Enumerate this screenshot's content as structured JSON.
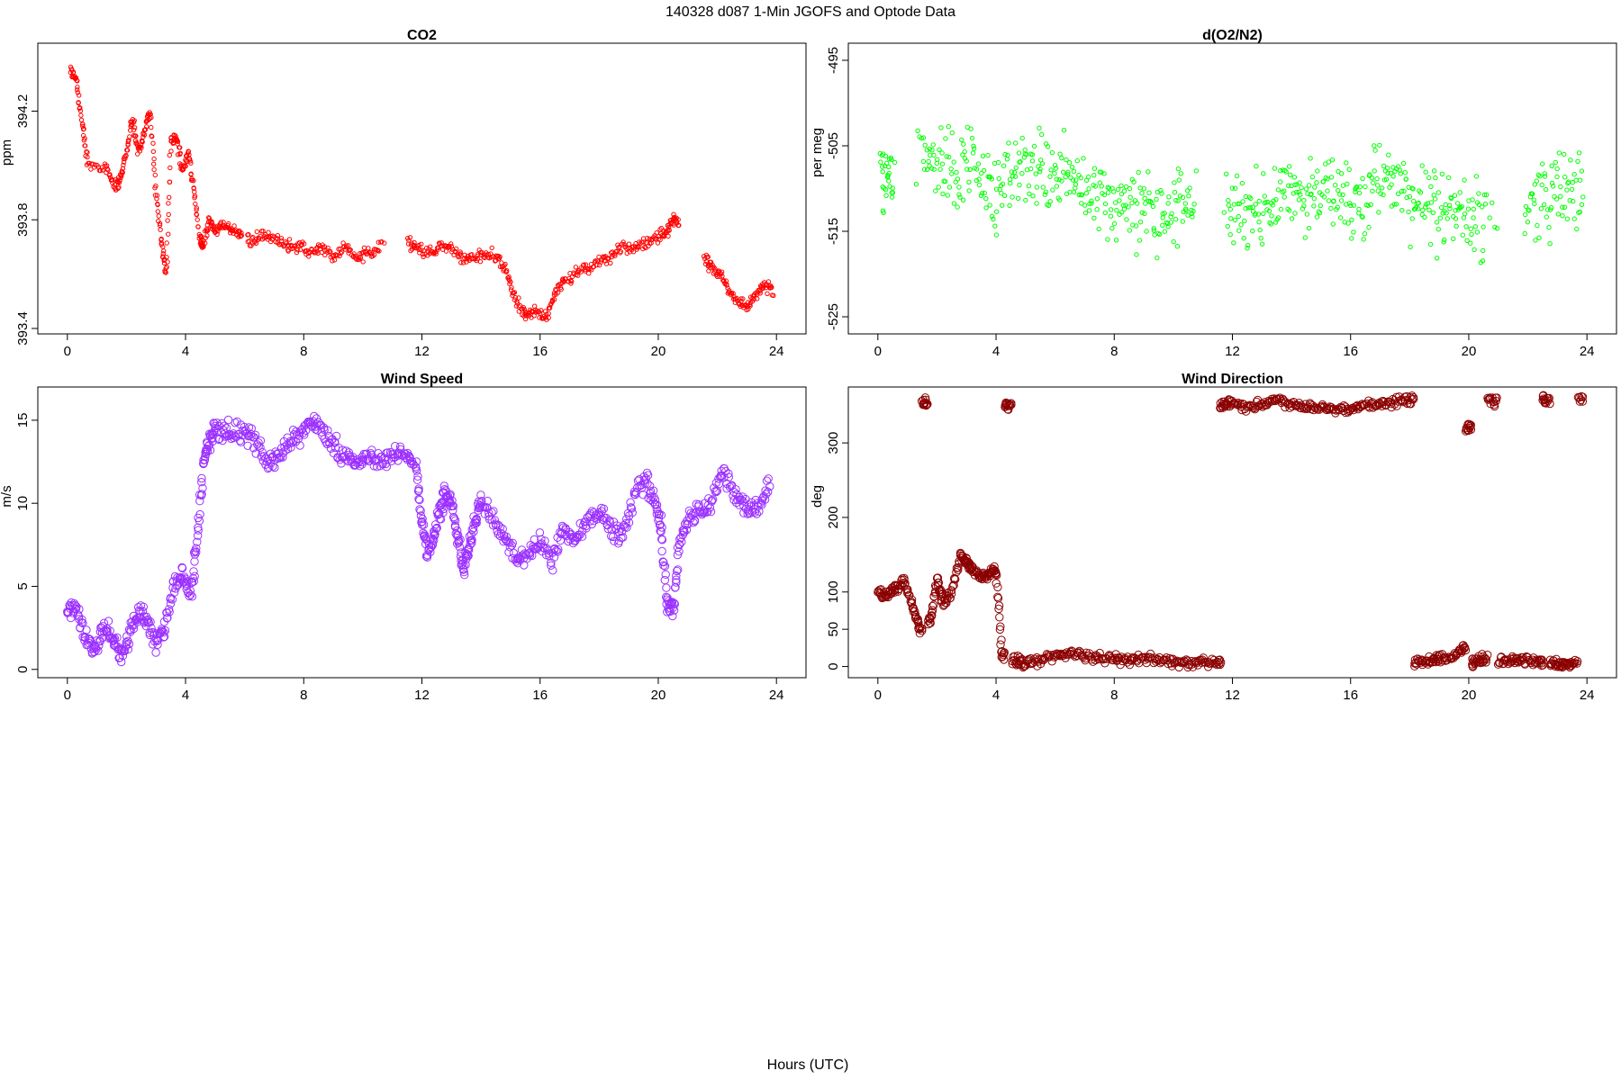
{
  "figure": {
    "title": "140328   d087   1-Min  JGOFS and Optode Data",
    "xlabel": "Hours (UTC)"
  },
  "chart_data": [
    {
      "type": "scatter",
      "title": "CO2",
      "ylabel": "ppm",
      "color": "#ff0000",
      "marker": "small-open-circle",
      "xlim": [
        -1,
        25
      ],
      "ylim": [
        393.38,
        394.45
      ],
      "xticks": [
        0,
        4,
        8,
        12,
        16,
        20,
        24
      ],
      "xtick_labels": [
        "0",
        "4",
        "8",
        "12",
        "16",
        "20",
        "24"
      ],
      "yticks": [
        393.4,
        393.8,
        394.2
      ],
      "ytick_labels": [
        "393.4",
        "393.8",
        "394.2"
      ],
      "gaps": [
        [
          5.9,
          6.1
        ],
        [
          10.8,
          11.5
        ],
        [
          20.7,
          21.5
        ]
      ],
      "x": [
        0.1,
        0.3,
        0.5,
        0.7,
        1.3,
        1.6,
        1.8,
        2.0,
        2.2,
        2.4,
        2.6,
        2.8,
        3.0,
        3.2,
        3.35,
        3.5,
        3.7,
        3.9,
        4.1,
        4.3,
        4.5,
        4.6,
        4.8,
        5.0,
        5.3,
        5.6,
        5.9,
        6.2,
        6.6,
        7.0,
        7.4,
        7.8,
        8.2,
        8.6,
        9.0,
        9.4,
        9.8,
        10.2,
        10.6,
        11.5,
        11.8,
        12.2,
        12.6,
        13.0,
        13.4,
        13.8,
        14.2,
        14.6,
        14.9,
        15.2,
        15.5,
        15.8,
        16.2,
        16.5,
        16.8,
        17.2,
        17.6,
        18.0,
        18.4,
        18.8,
        19.2,
        19.6,
        20.0,
        20.3,
        20.5,
        20.7,
        21.6,
        21.8,
        22.1,
        22.4,
        22.7,
        23.0,
        23.3,
        23.6,
        23.9
      ],
      "y": [
        394.35,
        394.32,
        394.15,
        394.0,
        394.0,
        393.92,
        393.95,
        394.05,
        394.18,
        394.05,
        394.12,
        394.2,
        393.9,
        393.7,
        393.6,
        394.1,
        394.1,
        393.98,
        394.05,
        393.9,
        393.72,
        393.7,
        393.8,
        393.76,
        393.78,
        393.76,
        393.74,
        393.72,
        393.74,
        393.73,
        393.71,
        393.7,
        393.68,
        393.7,
        393.66,
        393.7,
        393.66,
        393.68,
        393.7,
        393.72,
        393.7,
        393.68,
        393.7,
        393.7,
        393.65,
        393.66,
        393.68,
        393.66,
        393.6,
        393.5,
        393.45,
        393.46,
        393.44,
        393.52,
        393.58,
        393.6,
        393.62,
        393.65,
        393.66,
        393.7,
        393.7,
        393.72,
        393.74,
        393.76,
        393.8,
        393.8,
        393.65,
        393.62,
        393.6,
        393.54,
        393.5,
        393.48,
        393.52,
        393.56,
        393.54
      ]
    },
    {
      "type": "scatter",
      "title": "d(O2/N2)",
      "ylabel": "per meg",
      "color": "#00ff00",
      "marker": "small-open-circle",
      "xlim": [
        -1,
        25
      ],
      "ylim": [
        -527,
        -493
      ],
      "xticks": [
        0,
        4,
        8,
        12,
        16,
        20,
        24
      ],
      "xtick_labels": [
        "0",
        "4",
        "8",
        "12",
        "16",
        "20",
        "24"
      ],
      "yticks": [
        -525,
        -515,
        -505,
        -495
      ],
      "ytick_labels": [
        "-525",
        "-515",
        "-505",
        "-495"
      ],
      "gaps": [
        [
          0.6,
          1.2
        ],
        [
          10.8,
          11.7
        ],
        [
          21.0,
          21.8
        ]
      ],
      "x": [
        0.1,
        0.3,
        0.5,
        1.5,
        1.9,
        2.3,
        2.7,
        3.1,
        3.5,
        3.9,
        4.3,
        4.7,
        5.1,
        5.5,
        5.9,
        6.3,
        6.7,
        7.1,
        7.5,
        7.9,
        8.3,
        8.7,
        9.1,
        9.5,
        9.9,
        10.3,
        10.7,
        11.8,
        12.2,
        12.6,
        13.0,
        13.4,
        13.8,
        14.2,
        14.6,
        15.0,
        15.4,
        15.8,
        16.2,
        16.6,
        17.0,
        17.4,
        17.8,
        18.2,
        18.6,
        19.0,
        19.4,
        19.8,
        20.2,
        20.6,
        21.9,
        22.3,
        22.7,
        23.1,
        23.5,
        23.9
      ],
      "y": [
        -507,
        -509,
        -508,
        -505,
        -506,
        -507,
        -508,
        -506,
        -509,
        -511,
        -510,
        -508,
        -507,
        -508,
        -509,
        -508,
        -509,
        -511,
        -510,
        -512,
        -511,
        -513,
        -512,
        -514,
        -513,
        -512,
        -511,
        -513,
        -513,
        -512,
        -512,
        -511,
        -510,
        -510,
        -511,
        -510,
        -511,
        -512,
        -512,
        -511,
        -509,
        -509,
        -510,
        -512,
        -512,
        -513,
        -513,
        -513,
        -514,
        -513,
        -512,
        -511,
        -511,
        -510,
        -511,
        -510
      ],
      "spread": 4.5
    },
    {
      "type": "scatter",
      "title": "Wind Speed",
      "ylabel": "m/s",
      "color": "#9b30ff",
      "marker": "open-circle",
      "xlim": [
        -1,
        25
      ],
      "ylim": [
        -0.5,
        17
      ],
      "xticks": [
        0,
        4,
        8,
        12,
        16,
        20,
        24
      ],
      "xtick_labels": [
        "0",
        "4",
        "8",
        "12",
        "16",
        "20",
        "24"
      ],
      "yticks": [
        0,
        5,
        10,
        15
      ],
      "ytick_labels": [
        "0",
        "5",
        "10",
        "15"
      ],
      "x": [
        0,
        0.3,
        0.6,
        0.9,
        1.2,
        1.5,
        1.8,
        2.1,
        2.4,
        2.7,
        3.0,
        3.3,
        3.6,
        3.9,
        4.2,
        4.4,
        4.6,
        4.8,
        5.0,
        5.4,
        5.8,
        6.2,
        6.6,
        7.0,
        7.4,
        7.8,
        8.2,
        8.6,
        9.0,
        9.4,
        9.8,
        10.2,
        10.6,
        11.0,
        11.4,
        11.8,
        12.0,
        12.2,
        12.4,
        12.6,
        12.8,
        13.0,
        13.2,
        13.4,
        13.6,
        13.8,
        14.0,
        14.4,
        14.8,
        15.2,
        15.6,
        16.0,
        16.4,
        16.8,
        17.2,
        17.6,
        18.0,
        18.4,
        18.8,
        19.2,
        19.6,
        19.9,
        20.1,
        20.3,
        20.5,
        20.7,
        21.0,
        21.4,
        21.8,
        22.2,
        22.6,
        23.0,
        23.4,
        23.8
      ],
      "y": [
        3.5,
        3.8,
        2.0,
        1.0,
        2.5,
        2.0,
        1.0,
        2.0,
        3.5,
        3.0,
        1.5,
        2.5,
        5.0,
        5.5,
        4.5,
        8.0,
        12.5,
        13.5,
        14.5,
        14.5,
        14.3,
        14.0,
        13.0,
        12.5,
        13.5,
        14.0,
        14.8,
        14.5,
        13.5,
        12.8,
        12.5,
        12.8,
        12.6,
        12.8,
        12.8,
        12.4,
        9.0,
        7.0,
        8.0,
        9.5,
        10.5,
        10.0,
        8.0,
        6.0,
        7.5,
        9.0,
        10.0,
        9.0,
        8.0,
        6.5,
        7.0,
        7.5,
        6.5,
        8.5,
        7.5,
        9.0,
        9.5,
        8.5,
        8.0,
        10.5,
        11.5,
        10.0,
        8.5,
        4.0,
        3.5,
        7.5,
        9.0,
        9.5,
        10.0,
        12.0,
        10.5,
        9.5,
        10.0,
        11.0
      ],
      "spread": 0.6
    },
    {
      "type": "scatter",
      "title": "Wind Direction",
      "ylabel": "deg",
      "color": "#8b0000",
      "marker": "open-circle",
      "xlim": [
        -1,
        25
      ],
      "ylim": [
        -15,
        375
      ],
      "xticks": [
        0,
        4,
        8,
        12,
        16,
        20,
        24
      ],
      "xtick_labels": [
        "0",
        "4",
        "8",
        "12",
        "16",
        "20",
        "24"
      ],
      "yticks": [
        0,
        50,
        100,
        200,
        300
      ],
      "ytick_labels": [
        "0",
        "50",
        "100",
        "200",
        "300"
      ],
      "x": [
        0,
        0.3,
        0.6,
        0.9,
        1.2,
        1.4,
        1.6,
        1.8,
        2.0,
        2.2,
        2.5,
        2.8,
        3.0,
        3.2,
        3.5,
        3.8,
        4.0,
        4.2,
        4.4,
        4.7,
        5.0,
        5.5,
        6.0,
        6.5,
        7.0,
        7.5,
        8.0,
        8.5,
        9.0,
        9.5,
        10.0,
        10.5,
        11.0,
        11.5,
        11.7,
        12.0,
        12.5,
        13.0,
        13.5,
        14.0,
        14.5,
        15.0,
        15.5,
        16.0,
        16.5,
        17.0,
        17.5,
        18.0,
        18.3,
        18.7,
        19.0,
        19.4,
        19.8,
        20.0,
        20.2,
        20.5,
        20.8,
        21.2,
        21.6,
        22.0,
        22.4,
        22.6,
        22.9,
        23.2,
        23.5,
        23.9
      ],
      "y": [
        100,
        95,
        105,
        115,
        80,
        50,
        355,
        60,
        120,
        85,
        100,
        150,
        140,
        130,
        120,
        125,
        130,
        15,
        350,
        8,
        5,
        8,
        15,
        18,
        14,
        12,
        10,
        8,
        12,
        10,
        6,
        5,
        5,
        4,
        350,
        355,
        348,
        352,
        358,
        352,
        350,
        348,
        346,
        345,
        350,
        353,
        355,
        358,
        5,
        8,
        10,
        12,
        25,
        320,
        5,
        10,
        355,
        8,
        8,
        10,
        5,
        358,
        5,
        5,
        3,
        358
      ],
      "spread": 6
    }
  ]
}
